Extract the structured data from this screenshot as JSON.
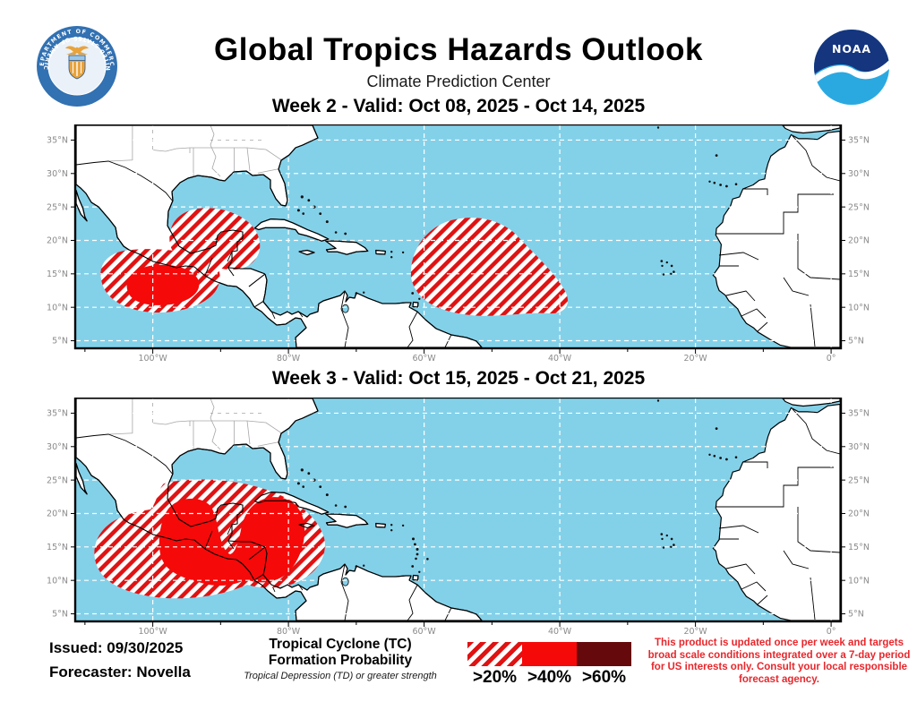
{
  "header": {
    "title": "Global Tropics Hazards Outlook",
    "subtitle": "Climate Prediction Center"
  },
  "logos": {
    "noaa": "NOAA",
    "doc_top": "DEPARTMENT OF COMMERCE",
    "doc_bottom": "UNITED STATES OF AMERICA"
  },
  "panels": [
    {
      "title": "Week 2 - Valid: Oct 08, 2025 - Oct 14, 2025",
      "hazards": [
        {
          "location": "Southwestern Gulf of Mexico / Bay of Campeche",
          "probability": ">20%"
        },
        {
          "location": "Eastern Pacific south of Mexico",
          "probability": ">40%"
        },
        {
          "location": "Central tropical Atlantic east of the Lesser Antilles",
          "probability": ">20%"
        }
      ]
    },
    {
      "title": "Week 3 - Valid: Oct 15, 2025 - Oct 21, 2025",
      "hazards": [
        {
          "location": "Eastern Pacific south of Mexico and Central America",
          "probability": ">20%"
        },
        {
          "location": "Bay of Campeche and northwestern Caribbean Sea",
          "probability": ">40%"
        }
      ]
    }
  ],
  "map": {
    "lat_labels": [
      "35°N",
      "30°N",
      "25°N",
      "20°N",
      "15°N",
      "10°N",
      "5°N"
    ],
    "lon_labels": [
      "100°W",
      "80°W",
      "60°W",
      "40°W",
      "20°W",
      "0°"
    ],
    "colors": {
      "ocean": "#83D1E9",
      "land": "#FFFFFF",
      "coastline": "#000000",
      "state_border": "#A6A6A6",
      "gridline": "#FFFFFF",
      "prob_20": "#E01212",
      "prob_40": "#F60909",
      "prob_60": "#65090C",
      "label": "#8A8A8A"
    }
  },
  "footer": {
    "issued": "Issued: 09/30/2025",
    "forecaster": "Forecaster: Novella",
    "legend": {
      "title_line1": "Tropical Cyclone (TC)",
      "title_line2": "Formation Probability",
      "subtitle": "Tropical Depression (TD) or greater strength",
      "items": [
        {
          "label": ">20%",
          "style": "hatched"
        },
        {
          "label": ">40%",
          "style": "solid"
        },
        {
          "label": ">60%",
          "style": "solid-dark"
        }
      ]
    },
    "disclaimer": "This product is updated once per week and targets broad scale conditions integrated over a 7-day period for US interests only. Consult your local responsible forecast agency.",
    "disclaimer_color": "#E8272C"
  }
}
